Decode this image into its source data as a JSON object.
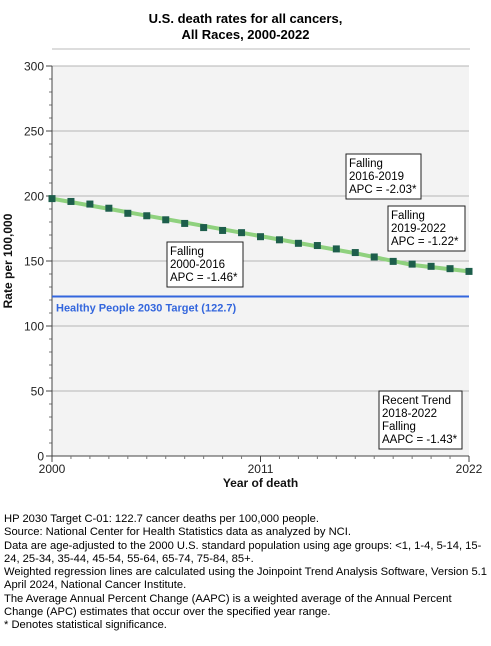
{
  "chart_data": {
    "type": "line",
    "title_lines": [
      "U.S. death rates for all cancers,",
      "All Races,  2000-2022"
    ],
    "xlabel": "Year of death",
    "ylabel": "Rate per 100,000",
    "xlim": [
      2000,
      2022
    ],
    "ylim": [
      0,
      300
    ],
    "x_ticks": [
      "2000",
      "2011",
      "2022"
    ],
    "y_ticks": [
      "0",
      "50",
      "100",
      "150",
      "200",
      "250",
      "300"
    ],
    "grid": true,
    "observed": {
      "x": [
        2000,
        2001,
        2002,
        2003,
        2004,
        2005,
        2006,
        2007,
        2008,
        2009,
        2010,
        2011,
        2012,
        2013,
        2014,
        2015,
        2016,
        2017,
        2018,
        2019,
        2020,
        2021,
        2022
      ],
      "y": [
        198.0,
        195.8,
        193.8,
        190.6,
        186.7,
        184.8,
        181.7,
        178.9,
        175.7,
        173.5,
        171.8,
        168.7,
        166.3,
        163.6,
        161.9,
        159.3,
        156.5,
        153.1,
        149.7,
        147.6,
        145.9,
        144.1,
        142.0
      ],
      "color": "#1d5e4b"
    },
    "trend_segments": [
      {
        "x": [
          2000,
          2016
        ],
        "y": [
          198.0,
          156.0
        ]
      },
      {
        "x": [
          2016,
          2019
        ],
        "y": [
          156.0,
          147.0
        ]
      },
      {
        "x": [
          2019,
          2022
        ],
        "y": [
          147.0,
          142.0
        ]
      }
    ],
    "trend_color": "#8fd17e",
    "target": {
      "value": 122.7,
      "label": "Healthy People 2030 Target (122.7)",
      "color": "#3366dd"
    },
    "annotations": [
      {
        "lines": [
          "Falling",
          "2016-2019",
          "APC = -2.03*"
        ]
      },
      {
        "lines": [
          "Falling",
          "2019-2022",
          "APC = -1.22*"
        ]
      },
      {
        "lines": [
          "Falling",
          "2000-2016",
          "APC = -1.46*"
        ]
      },
      {
        "lines": [
          "Recent Trend",
          "2018-2022",
          "Falling",
          "AAPC = -1.43*"
        ]
      }
    ]
  },
  "notes": [
    "HP 2030 Target C-01: 122.7 cancer deaths per 100,000 people.",
    "Source: National Center for Health Statistics data as analyzed by NCI.",
    "Data are age-adjusted to the 2000 U.S. standard population using age groups: <1, 1-4, 5-14, 15-24, 25-34, 35-44, 45-54, 55-64, 65-74, 75-84, 85+.",
    "Weighted regression lines are calculated using the Joinpoint Trend Analysis Software, Version 5.1 April 2024, National Cancer Institute.",
    "The Average Annual Percent Change (AAPC) is a weighted average of the Annual Percent Change (APC) estimates that occur over the specified year range.",
    "* Denotes statistical significance."
  ]
}
